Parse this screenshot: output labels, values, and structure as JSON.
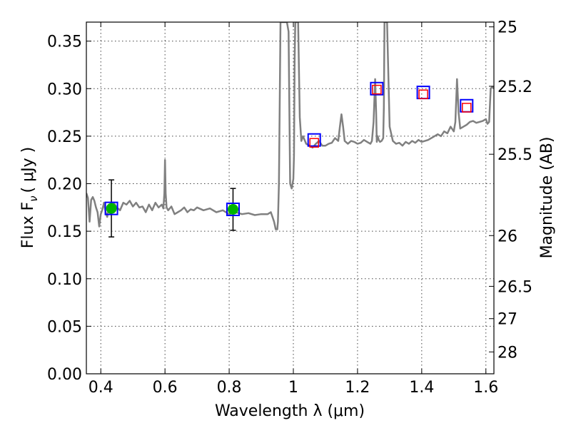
{
  "chart_data": {
    "type": "line",
    "xlabel": "Wavelength  λ (μm)",
    "ylabel": "Flux  F",
    "ylabel_sub": "ν",
    "ylabel_unit": "( μJy )",
    "y2label": "Magnitude (AB)",
    "xlim": [
      0.355,
      1.625
    ],
    "ylim": [
      0.0,
      0.37
    ],
    "grid": true,
    "x_ticks": [
      0.4,
      0.6,
      0.8,
      1.0,
      1.2,
      1.4,
      1.6
    ],
    "x_tick_labels": [
      "0.4",
      "0.6",
      "0.8",
      "1",
      "1.2",
      "1.4",
      "1.6"
    ],
    "y_ticks": [
      0.0,
      0.05,
      0.1,
      0.15,
      0.2,
      0.25,
      0.3,
      0.35
    ],
    "y_tick_labels": [
      "0.00",
      "0.05",
      "0.10",
      "0.15",
      "0.20",
      "0.25",
      "0.30",
      "0.35"
    ],
    "y2_ticks": [
      {
        "flux": 0.365,
        "label": "25"
      },
      {
        "flux": 0.3025,
        "label": "25.2"
      },
      {
        "flux": 0.231,
        "label": "25.5"
      },
      {
        "flux": 0.1454,
        "label": "26"
      },
      {
        "flux": 0.092,
        "label": "26.5"
      },
      {
        "flux": 0.058,
        "label": "27"
      },
      {
        "flux": 0.023,
        "label": "28"
      }
    ],
    "series": [
      {
        "style": "spectrum",
        "color": "#808080",
        "x": [
          0.355,
          0.36,
          0.365,
          0.37,
          0.375,
          0.38,
          0.385,
          0.39,
          0.395,
          0.4,
          0.405,
          0.41,
          0.415,
          0.42,
          0.425,
          0.43,
          0.435,
          0.44,
          0.45,
          0.46,
          0.47,
          0.48,
          0.49,
          0.5,
          0.51,
          0.52,
          0.53,
          0.54,
          0.55,
          0.56,
          0.57,
          0.58,
          0.59,
          0.595,
          0.598,
          0.6,
          0.602,
          0.605,
          0.61,
          0.62,
          0.63,
          0.64,
          0.65,
          0.66,
          0.67,
          0.68,
          0.69,
          0.7,
          0.72,
          0.74,
          0.76,
          0.78,
          0.8,
          0.82,
          0.84,
          0.86,
          0.88,
          0.9,
          0.92,
          0.93,
          0.94,
          0.945,
          0.95,
          0.952,
          0.955,
          0.958,
          0.96,
          0.962,
          0.965,
          0.97,
          0.975,
          0.98,
          0.985,
          0.99,
          0.995,
          1.0,
          1.002,
          1.004,
          1.006,
          1.01,
          1.015,
          1.02,
          1.025,
          1.03,
          1.04,
          1.05,
          1.06,
          1.07,
          1.08,
          1.09,
          1.1,
          1.11,
          1.12,
          1.13,
          1.14,
          1.145,
          1.15,
          1.155,
          1.16,
          1.17,
          1.18,
          1.19,
          1.2,
          1.21,
          1.22,
          1.23,
          1.24,
          1.245,
          1.25,
          1.255,
          1.258,
          1.26,
          1.263,
          1.266,
          1.27,
          1.275,
          1.28,
          1.282,
          1.284,
          1.286,
          1.288,
          1.29,
          1.292,
          1.295,
          1.3,
          1.31,
          1.32,
          1.33,
          1.34,
          1.35,
          1.36,
          1.37,
          1.38,
          1.39,
          1.4,
          1.41,
          1.42,
          1.43,
          1.44,
          1.45,
          1.46,
          1.47,
          1.48,
          1.49,
          1.5,
          1.505,
          1.51,
          1.515,
          1.52,
          1.53,
          1.54,
          1.55,
          1.56,
          1.57,
          1.58,
          1.59,
          1.6,
          1.605,
          1.61,
          1.615,
          1.62,
          1.625
        ],
        "y": [
          0.19,
          0.185,
          0.16,
          0.183,
          0.186,
          0.182,
          0.175,
          0.17,
          0.155,
          0.168,
          0.173,
          0.18,
          0.17,
          0.165,
          0.175,
          0.168,
          0.172,
          0.18,
          0.175,
          0.172,
          0.18,
          0.178,
          0.182,
          0.176,
          0.18,
          0.175,
          0.176,
          0.17,
          0.178,
          0.172,
          0.18,
          0.175,
          0.178,
          0.174,
          0.19,
          0.225,
          0.19,
          0.175,
          0.172,
          0.176,
          0.168,
          0.17,
          0.172,
          0.175,
          0.17,
          0.173,
          0.172,
          0.175,
          0.172,
          0.174,
          0.17,
          0.172,
          0.168,
          0.17,
          0.168,
          0.169,
          0.167,
          0.168,
          0.168,
          0.17,
          0.16,
          0.152,
          0.152,
          0.16,
          0.2,
          0.3,
          0.37,
          0.37,
          0.37,
          0.37,
          0.37,
          0.37,
          0.36,
          0.2,
          0.195,
          0.205,
          0.23,
          0.33,
          0.37,
          0.37,
          0.37,
          0.27,
          0.245,
          0.25,
          0.242,
          0.24,
          0.238,
          0.242,
          0.245,
          0.24,
          0.24,
          0.242,
          0.243,
          0.248,
          0.245,
          0.26,
          0.273,
          0.26,
          0.245,
          0.242,
          0.245,
          0.244,
          0.242,
          0.243,
          0.246,
          0.244,
          0.242,
          0.245,
          0.265,
          0.31,
          0.275,
          0.244,
          0.25,
          0.246,
          0.244,
          0.245,
          0.248,
          0.28,
          0.37,
          0.37,
          0.37,
          0.37,
          0.37,
          0.33,
          0.26,
          0.245,
          0.242,
          0.243,
          0.24,
          0.244,
          0.242,
          0.245,
          0.243,
          0.246,
          0.244,
          0.245,
          0.246,
          0.248,
          0.25,
          0.252,
          0.25,
          0.255,
          0.253,
          0.26,
          0.255,
          0.265,
          0.31,
          0.275,
          0.258,
          0.26,
          0.262,
          0.265,
          0.266,
          0.264,
          0.265,
          0.266,
          0.268,
          0.263,
          0.265,
          0.3,
          0.302,
          0.3
        ]
      },
      {
        "style": "photometry-green",
        "points": [
          {
            "x": 0.433,
            "y": 0.174,
            "yerr": 0.03
          },
          {
            "x": 0.812,
            "y": 0.173,
            "yerr": 0.022
          }
        ]
      },
      {
        "style": "model-blue-square",
        "points": [
          {
            "x": 0.433,
            "y": 0.174
          },
          {
            "x": 0.812,
            "y": 0.173
          },
          {
            "x": 1.065,
            "y": 0.246
          },
          {
            "x": 1.26,
            "y": 0.3
          },
          {
            "x": 1.405,
            "y": 0.296
          },
          {
            "x": 1.54,
            "y": 0.282
          }
        ]
      },
      {
        "style": "model-red-square",
        "points": [
          {
            "x": 1.065,
            "y": 0.243
          },
          {
            "x": 1.26,
            "y": 0.299
          },
          {
            "x": 1.405,
            "y": 0.294
          },
          {
            "x": 1.54,
            "y": 0.28
          }
        ]
      }
    ],
    "colors": {
      "spectrum": "#808080",
      "green": "#00b400",
      "blue": "#0000ff",
      "red": "#ff0000"
    }
  }
}
